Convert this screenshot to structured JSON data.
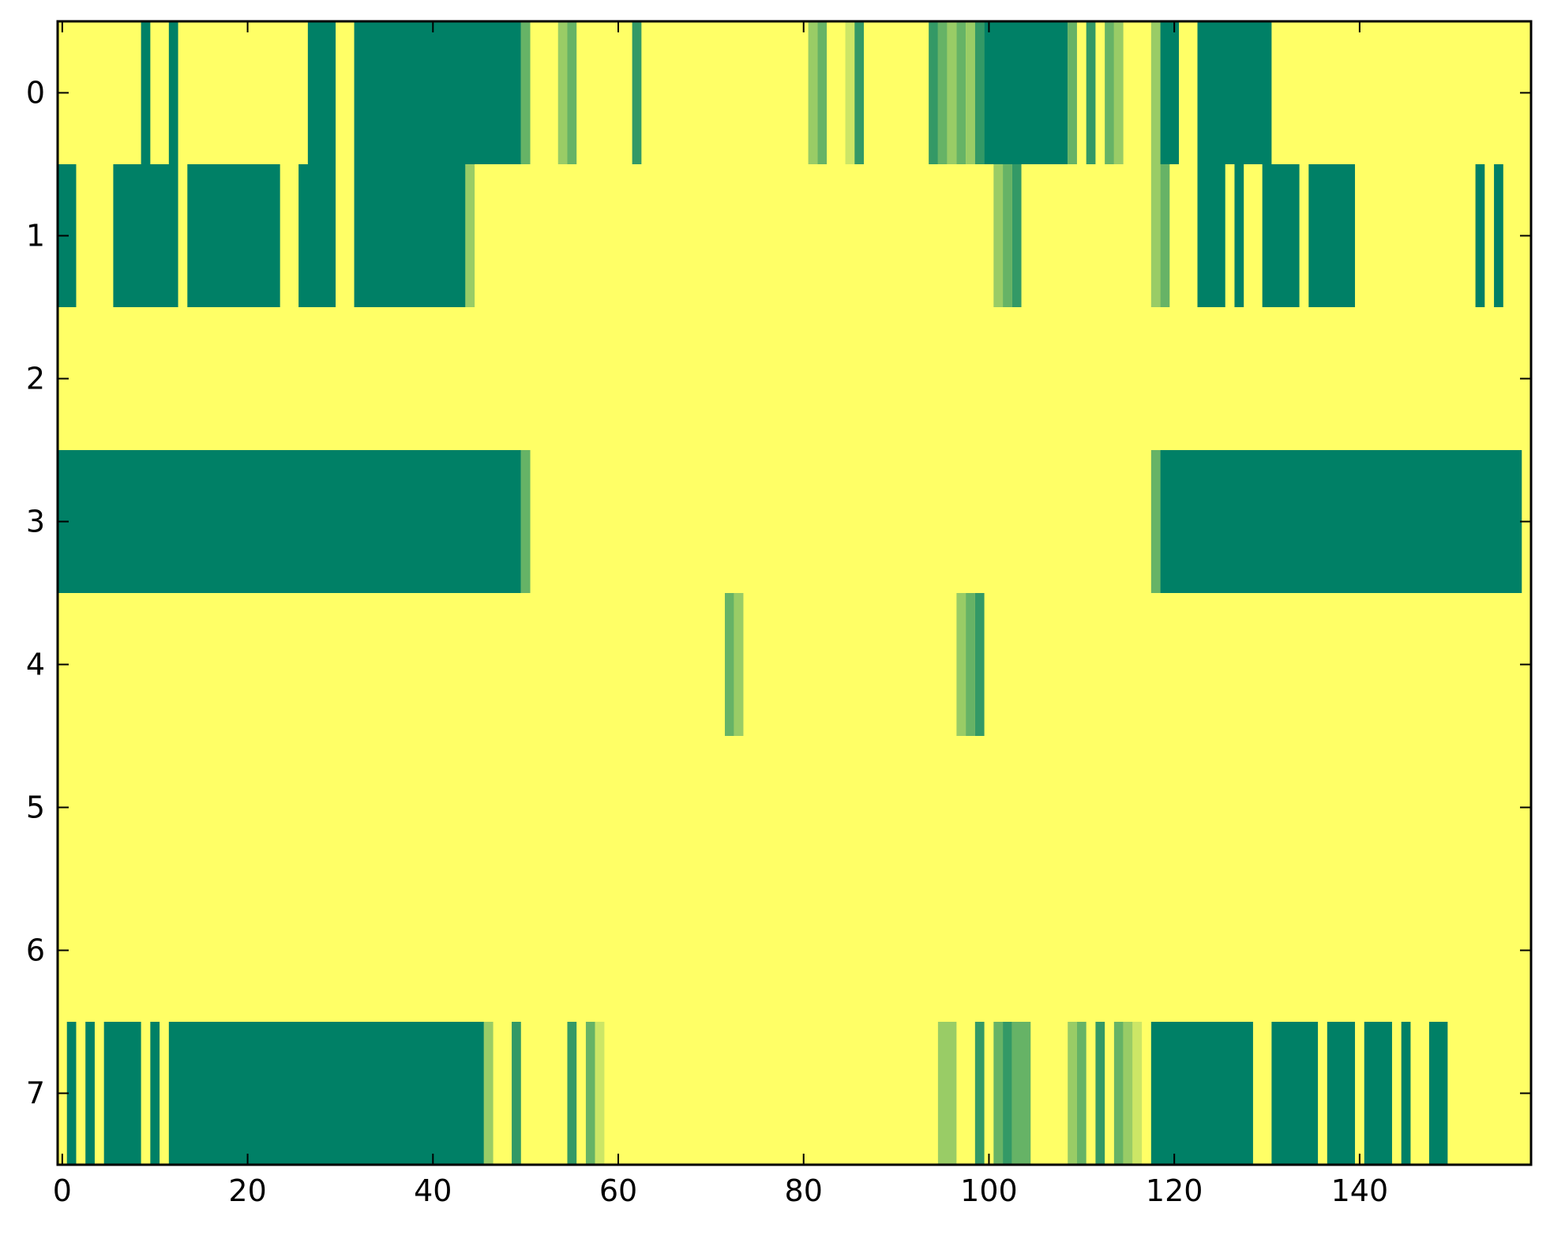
{
  "chart_data": {
    "type": "heatmap",
    "title": "",
    "xlabel": "",
    "ylabel": "",
    "xlim": [
      -0.5,
      158.5
    ],
    "ylim": [
      7.5,
      -0.5
    ],
    "x_ticks": [
      0,
      20,
      40,
      60,
      80,
      100,
      120,
      140
    ],
    "x_tick_labels": [
      "0",
      "20",
      "40",
      "60",
      "80",
      "100",
      "120",
      "140"
    ],
    "y_ticks": [
      0,
      1,
      2,
      3,
      4,
      5,
      6,
      7
    ],
    "y_tick_labels": [
      "0",
      "1",
      "2",
      "3",
      "4",
      "5",
      "6",
      "7"
    ],
    "columns": 159,
    "background_value": 0,
    "colormap": {
      "name": "summer_r",
      "low": "#ffff66",
      "high": "#008066"
    },
    "value_range": [
      0,
      1
    ],
    "grid": false,
    "legend": "none",
    "rows": [
      {
        "row": 0,
        "segments": [
          [
            9,
            9,
            1
          ],
          [
            12,
            12,
            1
          ],
          [
            27,
            29,
            1
          ],
          [
            32,
            49,
            1
          ],
          [
            50,
            50,
            0.6
          ],
          [
            54,
            54,
            0.4
          ],
          [
            55,
            55,
            0.6
          ],
          [
            62,
            62,
            0.8
          ],
          [
            81,
            81,
            0.4
          ],
          [
            82,
            82,
            0.6
          ],
          [
            85,
            85,
            0.2
          ],
          [
            86,
            86,
            0.8
          ],
          [
            94,
            94,
            0.8
          ],
          [
            95,
            95,
            0.6
          ],
          [
            96,
            96,
            0.4
          ],
          [
            97,
            97,
            0.6
          ],
          [
            98,
            98,
            0.4
          ],
          [
            99,
            99,
            0.8
          ],
          [
            100,
            108,
            1
          ],
          [
            109,
            109,
            0.6
          ],
          [
            111,
            111,
            0.8
          ],
          [
            113,
            113,
            0.6
          ],
          [
            114,
            114,
            0.4
          ],
          [
            118,
            118,
            0.4
          ],
          [
            119,
            120,
            1
          ],
          [
            123,
            130,
            1
          ]
        ]
      },
      {
        "row": 1,
        "segments": [
          [
            0,
            1,
            1
          ],
          [
            6,
            12,
            1
          ],
          [
            14,
            23,
            1
          ],
          [
            26,
            29,
            1
          ],
          [
            32,
            43,
            1
          ],
          [
            44,
            44,
            0.4
          ],
          [
            101,
            101,
            0.4
          ],
          [
            102,
            102,
            0.6
          ],
          [
            103,
            103,
            0.8
          ],
          [
            118,
            118,
            0.4
          ],
          [
            119,
            119,
            0.6
          ],
          [
            123,
            125,
            1
          ],
          [
            127,
            127,
            1
          ],
          [
            130,
            133,
            1
          ],
          [
            135,
            139,
            1
          ],
          [
            153,
            153,
            1
          ],
          [
            155,
            155,
            1
          ]
        ]
      },
      {
        "row": 2,
        "segments": []
      },
      {
        "row": 3,
        "segments": [
          [
            0,
            49,
            1
          ],
          [
            50,
            50,
            0.6
          ],
          [
            118,
            118,
            0.6
          ],
          [
            119,
            157,
            1
          ]
        ]
      },
      {
        "row": 4,
        "segments": [
          [
            72,
            72,
            0.6
          ],
          [
            73,
            73,
            0.4
          ],
          [
            97,
            97,
            0.4
          ],
          [
            98,
            98,
            0.6
          ],
          [
            99,
            99,
            0.8
          ]
        ]
      },
      {
        "row": 5,
        "segments": []
      },
      {
        "row": 6,
        "segments": []
      },
      {
        "row": 7,
        "segments": [
          [
            1,
            1,
            1
          ],
          [
            3,
            3,
            1
          ],
          [
            5,
            8,
            1
          ],
          [
            10,
            10,
            1
          ],
          [
            12,
            45,
            1
          ],
          [
            46,
            46,
            0.4
          ],
          [
            49,
            49,
            0.8
          ],
          [
            55,
            55,
            0.8
          ],
          [
            57,
            57,
            0.6
          ],
          [
            58,
            58,
            0.2
          ],
          [
            95,
            96,
            0.4
          ],
          [
            99,
            99,
            0.8
          ],
          [
            101,
            101,
            0.6
          ],
          [
            102,
            102,
            0.8
          ],
          [
            103,
            104,
            0.6
          ],
          [
            109,
            109,
            0.4
          ],
          [
            110,
            110,
            0.6
          ],
          [
            112,
            112,
            0.8
          ],
          [
            114,
            114,
            0.6
          ],
          [
            115,
            115,
            0.4
          ],
          [
            116,
            116,
            0.2
          ],
          [
            118,
            128,
            1
          ],
          [
            131,
            135,
            1
          ],
          [
            137,
            139,
            1
          ],
          [
            141,
            143,
            1
          ],
          [
            145,
            145,
            1
          ],
          [
            148,
            149,
            1
          ]
        ]
      }
    ]
  }
}
